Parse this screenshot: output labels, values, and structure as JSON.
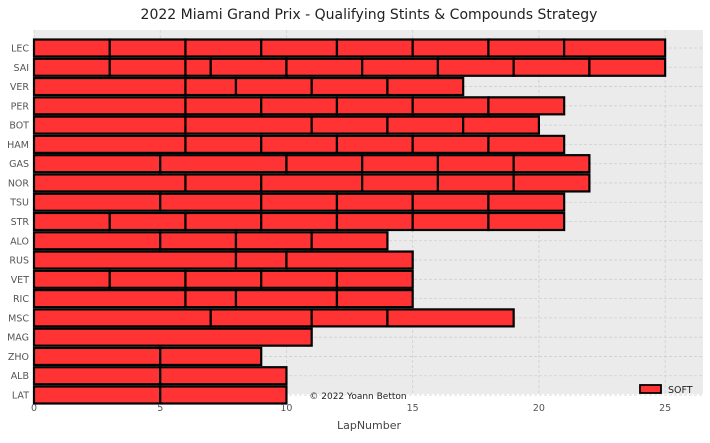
{
  "chart_data": {
    "type": "bar",
    "orientation": "horizontal-stacked",
    "title": "2022 Miami Grand Prix - Qualifying Stints & Compounds Strategy",
    "xlabel": "LapNumber",
    "ylabel": "",
    "xlim": [
      0,
      26.5
    ],
    "xticks": [
      0,
      5,
      10,
      15,
      20,
      25
    ],
    "grid": true,
    "legend": {
      "position": "bottom-right",
      "entries": [
        {
          "label": "SOFT",
          "color": "#ff3333"
        }
      ]
    },
    "annotation": "© 2022 Yoann Betton",
    "compound_colors": {
      "SOFT": "#ff3333"
    },
    "drivers": [
      {
        "driver": "LEC",
        "stints": [
          {
            "compound": "SOFT",
            "laps": 3
          },
          {
            "compound": "SOFT",
            "laps": 3
          },
          {
            "compound": "SOFT",
            "laps": 3
          },
          {
            "compound": "SOFT",
            "laps": 3
          },
          {
            "compound": "SOFT",
            "laps": 3
          },
          {
            "compound": "SOFT",
            "laps": 3
          },
          {
            "compound": "SOFT",
            "laps": 3
          },
          {
            "compound": "SOFT",
            "laps": 4
          }
        ]
      },
      {
        "driver": "SAI",
        "stints": [
          {
            "compound": "SOFT",
            "laps": 3
          },
          {
            "compound": "SOFT",
            "laps": 3
          },
          {
            "compound": "SOFT",
            "laps": 1
          },
          {
            "compound": "SOFT",
            "laps": 3
          },
          {
            "compound": "SOFT",
            "laps": 3
          },
          {
            "compound": "SOFT",
            "laps": 3
          },
          {
            "compound": "SOFT",
            "laps": 3
          },
          {
            "compound": "SOFT",
            "laps": 3
          },
          {
            "compound": "SOFT",
            "laps": 3
          }
        ]
      },
      {
        "driver": "VER",
        "stints": [
          {
            "compound": "SOFT",
            "laps": 6
          },
          {
            "compound": "SOFT",
            "laps": 2
          },
          {
            "compound": "SOFT",
            "laps": 3
          },
          {
            "compound": "SOFT",
            "laps": 3
          },
          {
            "compound": "SOFT",
            "laps": 3
          }
        ]
      },
      {
        "driver": "PER",
        "stints": [
          {
            "compound": "SOFT",
            "laps": 6
          },
          {
            "compound": "SOFT",
            "laps": 3
          },
          {
            "compound": "SOFT",
            "laps": 3
          },
          {
            "compound": "SOFT",
            "laps": 3
          },
          {
            "compound": "SOFT",
            "laps": 3
          },
          {
            "compound": "SOFT",
            "laps": 3
          }
        ]
      },
      {
        "driver": "BOT",
        "stints": [
          {
            "compound": "SOFT",
            "laps": 6
          },
          {
            "compound": "SOFT",
            "laps": 5
          },
          {
            "compound": "SOFT",
            "laps": 3
          },
          {
            "compound": "SOFT",
            "laps": 3
          },
          {
            "compound": "SOFT",
            "laps": 3
          }
        ]
      },
      {
        "driver": "HAM",
        "stints": [
          {
            "compound": "SOFT",
            "laps": 6
          },
          {
            "compound": "SOFT",
            "laps": 3
          },
          {
            "compound": "SOFT",
            "laps": 3
          },
          {
            "compound": "SOFT",
            "laps": 3
          },
          {
            "compound": "SOFT",
            "laps": 3
          },
          {
            "compound": "SOFT",
            "laps": 3
          }
        ]
      },
      {
        "driver": "GAS",
        "stints": [
          {
            "compound": "SOFT",
            "laps": 5
          },
          {
            "compound": "SOFT",
            "laps": 5
          },
          {
            "compound": "SOFT",
            "laps": 3
          },
          {
            "compound": "SOFT",
            "laps": 3
          },
          {
            "compound": "SOFT",
            "laps": 3
          },
          {
            "compound": "SOFT",
            "laps": 3
          }
        ]
      },
      {
        "driver": "NOR",
        "stints": [
          {
            "compound": "SOFT",
            "laps": 6
          },
          {
            "compound": "SOFT",
            "laps": 3
          },
          {
            "compound": "SOFT",
            "laps": 4
          },
          {
            "compound": "SOFT",
            "laps": 3
          },
          {
            "compound": "SOFT",
            "laps": 3
          },
          {
            "compound": "SOFT",
            "laps": 3
          }
        ]
      },
      {
        "driver": "TSU",
        "stints": [
          {
            "compound": "SOFT",
            "laps": 5
          },
          {
            "compound": "SOFT",
            "laps": 4
          },
          {
            "compound": "SOFT",
            "laps": 3
          },
          {
            "compound": "SOFT",
            "laps": 3
          },
          {
            "compound": "SOFT",
            "laps": 3
          },
          {
            "compound": "SOFT",
            "laps": 3
          }
        ]
      },
      {
        "driver": "STR",
        "stints": [
          {
            "compound": "SOFT",
            "laps": 3
          },
          {
            "compound": "SOFT",
            "laps": 3
          },
          {
            "compound": "SOFT",
            "laps": 3
          },
          {
            "compound": "SOFT",
            "laps": 3
          },
          {
            "compound": "SOFT",
            "laps": 3
          },
          {
            "compound": "SOFT",
            "laps": 3
          },
          {
            "compound": "SOFT",
            "laps": 3
          }
        ]
      },
      {
        "driver": "ALO",
        "stints": [
          {
            "compound": "SOFT",
            "laps": 5
          },
          {
            "compound": "SOFT",
            "laps": 3
          },
          {
            "compound": "SOFT",
            "laps": 3
          },
          {
            "compound": "SOFT",
            "laps": 3
          }
        ]
      },
      {
        "driver": "RUS",
        "stints": [
          {
            "compound": "SOFT",
            "laps": 8
          },
          {
            "compound": "SOFT",
            "laps": 2
          },
          {
            "compound": "SOFT",
            "laps": 5
          }
        ]
      },
      {
        "driver": "VET",
        "stints": [
          {
            "compound": "SOFT",
            "laps": 3
          },
          {
            "compound": "SOFT",
            "laps": 3
          },
          {
            "compound": "SOFT",
            "laps": 3
          },
          {
            "compound": "SOFT",
            "laps": 3
          },
          {
            "compound": "SOFT",
            "laps": 3
          }
        ]
      },
      {
        "driver": "RIC",
        "stints": [
          {
            "compound": "SOFT",
            "laps": 6
          },
          {
            "compound": "SOFT",
            "laps": 2
          },
          {
            "compound": "SOFT",
            "laps": 4
          },
          {
            "compound": "SOFT",
            "laps": 3
          }
        ]
      },
      {
        "driver": "MSC",
        "stints": [
          {
            "compound": "SOFT",
            "laps": 7
          },
          {
            "compound": "SOFT",
            "laps": 4
          },
          {
            "compound": "SOFT",
            "laps": 3
          },
          {
            "compound": "SOFT",
            "laps": 5
          }
        ]
      },
      {
        "driver": "MAG",
        "stints": [
          {
            "compound": "SOFT",
            "laps": 11
          }
        ]
      },
      {
        "driver": "ZHO",
        "stints": [
          {
            "compound": "SOFT",
            "laps": 5
          },
          {
            "compound": "SOFT",
            "laps": 4
          }
        ]
      },
      {
        "driver": "ALB",
        "stints": [
          {
            "compound": "SOFT",
            "laps": 5
          },
          {
            "compound": "SOFT",
            "laps": 5
          }
        ]
      },
      {
        "driver": "LAT",
        "stints": [
          {
            "compound": "SOFT",
            "laps": 5
          },
          {
            "compound": "SOFT",
            "laps": 5
          }
        ]
      }
    ]
  }
}
